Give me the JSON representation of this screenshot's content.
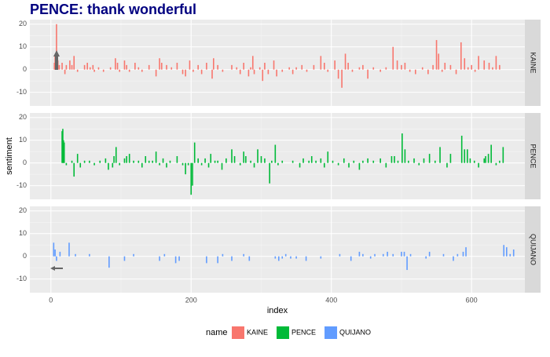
{
  "chart_data": {
    "type": "bar",
    "title": "PENCE: thank wonderful",
    "x_label": "index",
    "y_label": "sentiment",
    "legend_title": "name",
    "xlim": [
      -30,
      676
    ],
    "xticks": [
      0,
      200,
      400,
      600
    ],
    "ylim": [
      -16,
      22
    ],
    "yticks": [
      -10,
      0,
      10,
      20
    ],
    "grid": true,
    "series": [
      {
        "name": "KAINE",
        "color": "#F8766D",
        "x": [
          5,
          6,
          7,
          8,
          9,
          10,
          12,
          16,
          20,
          22,
          27,
          30,
          33,
          38,
          48,
          52,
          56,
          60,
          62,
          68,
          75,
          85,
          92,
          95,
          98,
          105,
          108,
          112,
          120,
          125,
          130,
          140,
          150,
          155,
          158,
          165,
          172,
          180,
          188,
          192,
          198,
          203,
          210,
          215,
          222,
          230,
          232,
          238,
          245,
          258,
          265,
          270,
          275,
          282,
          285,
          288,
          290,
          298,
          302,
          305,
          310,
          318,
          322,
          330,
          340,
          345,
          350,
          358,
          365,
          375,
          385,
          390,
          395,
          405,
          410,
          415,
          420,
          424,
          430,
          440,
          445,
          452,
          460,
          470,
          478,
          488,
          494,
          500,
          505,
          512,
          520,
          530,
          538,
          545,
          550,
          553,
          558,
          562,
          570,
          578,
          585,
          590,
          595,
          600,
          605,
          610,
          618,
          625,
          630,
          635,
          640
        ],
        "values": [
          3,
          6,
          7,
          20,
          6,
          4,
          2,
          3,
          -2,
          2,
          4,
          2,
          6,
          -1,
          2,
          3,
          1,
          2,
          -1,
          1,
          -1,
          1,
          5,
          3,
          -1,
          4,
          2,
          -1,
          3,
          1,
          -1,
          2,
          -3,
          5,
          3,
          2,
          1,
          3,
          -2,
          -3,
          4,
          -1,
          2,
          -2,
          3,
          -4,
          5,
          2,
          -1,
          2,
          1,
          -2,
          3,
          -3,
          1,
          6,
          -2,
          1,
          -5,
          3,
          -2,
          4,
          -3,
          -1,
          1,
          -2,
          1,
          2,
          -1,
          2,
          6,
          3,
          -1,
          4,
          -4,
          -8,
          7,
          3,
          -1,
          1,
          2,
          -4,
          1,
          -1,
          1,
          10,
          4,
          2,
          3,
          -1,
          -2,
          1,
          -2,
          2,
          13,
          7,
          -1,
          3,
          2,
          -2,
          12,
          5,
          1,
          2,
          -1,
          6,
          4,
          3,
          1,
          6,
          2
        ]
      },
      {
        "name": "PENCE",
        "color": "#00BA38",
        "x": [
          16,
          17,
          18,
          19,
          22,
          30,
          33,
          38,
          42,
          48,
          55,
          62,
          70,
          78,
          82,
          88,
          90,
          93,
          98,
          105,
          108,
          112,
          118,
          125,
          130,
          135,
          140,
          145,
          150,
          155,
          160,
          165,
          170,
          180,
          188,
          192,
          196,
          200,
          202,
          205,
          210,
          215,
          220,
          225,
          228,
          234,
          238,
          244,
          250,
          258,
          262,
          270,
          275,
          278,
          285,
          290,
          295,
          300,
          305,
          312,
          315,
          320,
          324,
          330,
          345,
          355,
          360,
          368,
          372,
          378,
          385,
          390,
          395,
          402,
          410,
          418,
          425,
          432,
          440,
          445,
          452,
          460,
          470,
          478,
          486,
          490,
          495,
          501,
          505,
          510,
          518,
          525,
          532,
          540,
          548,
          555,
          565,
          570,
          586,
          590,
          594,
          598,
          604,
          610,
          618,
          620,
          624,
          628,
          635,
          640,
          645
        ],
        "values": [
          14,
          15,
          10,
          9,
          -1,
          1,
          -6,
          4,
          -2,
          1,
          1,
          -1,
          1,
          2,
          -3,
          -2,
          3,
          7,
          -1,
          2,
          3,
          4,
          1,
          1,
          -2,
          3,
          1,
          1,
          5,
          -1,
          2,
          -2,
          1,
          3,
          -1,
          -5,
          -1,
          -14,
          -10,
          9,
          2,
          -1,
          2,
          -2,
          4,
          1,
          1,
          -3,
          2,
          6,
          3,
          -1,
          5,
          3,
          1,
          -2,
          6,
          3,
          2,
          -9,
          1,
          8,
          -1,
          1,
          1,
          -2,
          2,
          1,
          3,
          1,
          2,
          -2,
          5,
          1,
          -1,
          2,
          -2,
          1,
          -3,
          1,
          2,
          1,
          2,
          -2,
          3,
          3,
          1,
          13,
          6,
          1,
          2,
          -1,
          2,
          4,
          1,
          7,
          -2,
          4,
          12,
          6,
          6,
          2,
          1,
          -2,
          2,
          3,
          4,
          8,
          -1,
          1,
          7
        ]
      },
      {
        "name": "QUIJANO",
        "color": "#619CFF",
        "x": [
          4,
          6,
          8,
          13,
          26,
          35,
          55,
          83,
          105,
          118,
          155,
          162,
          178,
          183,
          222,
          238,
          245,
          258,
          275,
          283,
          320,
          325,
          330,
          335,
          342,
          350,
          364,
          385,
          412,
          428,
          440,
          445,
          456,
          462,
          474,
          480,
          488,
          500,
          504,
          508,
          513,
          535,
          540,
          560,
          574,
          580,
          588,
          592,
          646,
          650,
          655,
          660
        ],
        "values": [
          6,
          3,
          -2,
          2,
          6,
          1,
          1,
          -5,
          -2,
          1,
          -2,
          1,
          -3,
          -2,
          -3,
          -3,
          1,
          -2,
          1,
          -2,
          -1,
          -2,
          -1,
          1,
          -1,
          -1,
          -2,
          -1,
          1,
          -2,
          2,
          1,
          -1,
          1,
          1,
          2,
          1,
          2,
          2,
          -6,
          1,
          -1,
          2,
          1,
          -2,
          1,
          2,
          4,
          5,
          4,
          1,
          3
        ]
      }
    ]
  }
}
